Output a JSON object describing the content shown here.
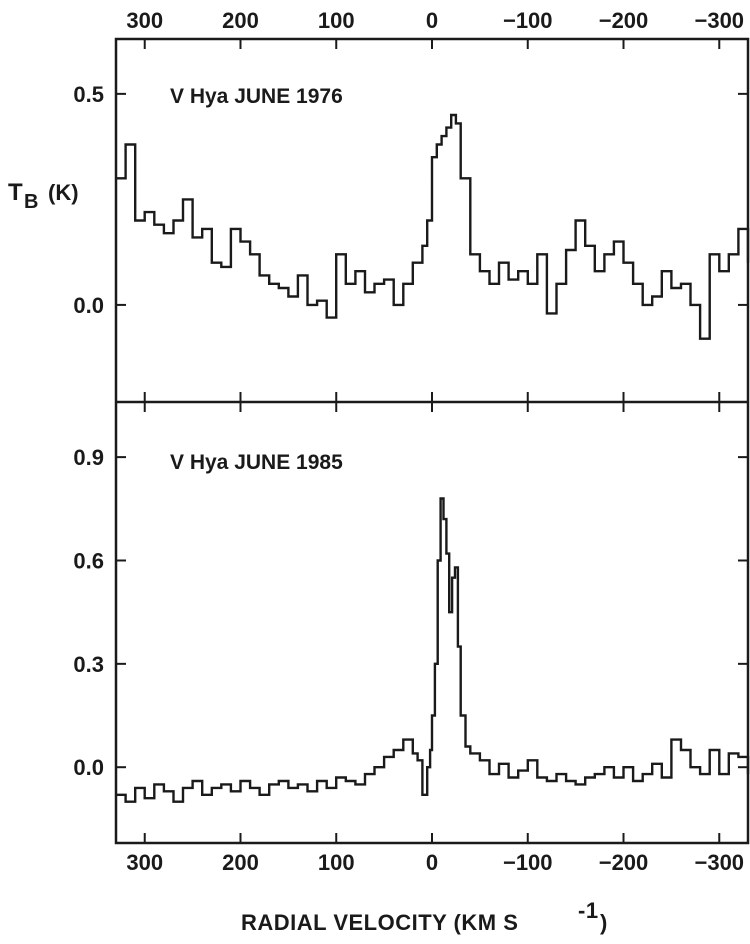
{
  "chart_data": {
    "type": "line",
    "xlabel": "RADIAL VELOCITY (KM S",
    "xlabel_exponent": "-1",
    "xlabel_close": ")",
    "x_ticks": [
      300,
      200,
      100,
      0,
      -100,
      -200,
      -300
    ],
    "x_tick_labels": [
      "300",
      "200",
      "100",
      "0",
      "−100",
      "−200",
      "−300"
    ],
    "xlim": [
      330,
      -330
    ],
    "x_axis_reversed": true,
    "ylabel_main": "T",
    "ylabel_sub": "B",
    "ylabel_unit": "(K)",
    "panels": [
      {
        "title": "V Hya JUNE 1976",
        "ylim": [
          -0.23,
          0.63
        ],
        "y_ticks": [
          0.5,
          0.0
        ],
        "y_tick_labels": [
          "0.5",
          "0.0"
        ],
        "x": [
          330,
          320,
          310,
          300,
          290,
          280,
          270,
          260,
          250,
          240,
          230,
          220,
          210,
          200,
          190,
          180,
          170,
          160,
          150,
          140,
          130,
          120,
          110,
          100,
          90,
          80,
          70,
          60,
          50,
          40,
          30,
          20,
          10,
          5,
          0,
          -5,
          -10,
          -15,
          -20,
          -25,
          -30,
          -40,
          -50,
          -60,
          -70,
          -80,
          -90,
          -100,
          -110,
          -120,
          -130,
          -140,
          -150,
          -160,
          -170,
          -180,
          -190,
          -200,
          -210,
          -220,
          -230,
          -240,
          -250,
          -260,
          -270,
          -280,
          -290,
          -300,
          -310,
          -320,
          -330
        ],
        "values": [
          0.3,
          0.38,
          0.2,
          0.22,
          0.19,
          0.17,
          0.2,
          0.25,
          0.16,
          0.18,
          0.1,
          0.09,
          0.18,
          0.15,
          0.12,
          0.07,
          0.05,
          0.04,
          0.02,
          0.07,
          0.0,
          0.01,
          -0.03,
          0.12,
          0.05,
          0.08,
          0.03,
          0.05,
          0.06,
          0.0,
          0.05,
          0.1,
          0.14,
          0.2,
          0.35,
          0.38,
          0.4,
          0.42,
          0.45,
          0.43,
          0.3,
          0.12,
          0.08,
          0.05,
          0.1,
          0.06,
          0.08,
          0.05,
          0.12,
          -0.02,
          0.05,
          0.13,
          0.2,
          0.14,
          0.08,
          0.12,
          0.15,
          0.1,
          0.05,
          0.0,
          0.02,
          0.08,
          0.04,
          0.05,
          0.0,
          -0.08,
          0.12,
          0.08,
          0.12,
          0.18,
          0.1
        ]
      },
      {
        "title": "V Hya JUNE 1985",
        "ylim": [
          -0.22,
          1.06
        ],
        "y_ticks": [
          0.9,
          0.6,
          0.3,
          0.0
        ],
        "y_tick_labels": [
          "0.9",
          "0.6",
          "0.3",
          "0.0"
        ],
        "x": [
          330,
          320,
          310,
          300,
          290,
          280,
          270,
          260,
          250,
          240,
          230,
          220,
          210,
          200,
          190,
          180,
          170,
          160,
          150,
          140,
          130,
          120,
          110,
          100,
          90,
          80,
          70,
          60,
          50,
          40,
          30,
          20,
          15,
          10,
          5,
          2,
          0,
          -3,
          -6,
          -9,
          -12,
          -15,
          -18,
          -21,
          -24,
          -27,
          -30,
          -35,
          -40,
          -50,
          -60,
          -70,
          -80,
          -90,
          -100,
          -110,
          -120,
          -130,
          -140,
          -150,
          -160,
          -170,
          -180,
          -190,
          -200,
          -210,
          -220,
          -230,
          -240,
          -250,
          -260,
          -270,
          -280,
          -290,
          -300,
          -310,
          -320,
          -330
        ],
        "values": [
          -0.08,
          -0.1,
          -0.06,
          -0.09,
          -0.05,
          -0.07,
          -0.1,
          -0.06,
          -0.04,
          -0.08,
          -0.06,
          -0.05,
          -0.07,
          -0.04,
          -0.06,
          -0.08,
          -0.05,
          -0.04,
          -0.06,
          -0.05,
          -0.07,
          -0.04,
          -0.06,
          -0.03,
          -0.04,
          -0.05,
          -0.02,
          0.0,
          0.03,
          0.05,
          0.08,
          0.04,
          0.02,
          -0.08,
          0.0,
          0.05,
          0.15,
          0.3,
          0.6,
          0.78,
          0.72,
          0.62,
          0.45,
          0.55,
          0.58,
          0.35,
          0.15,
          0.06,
          0.04,
          0.02,
          -0.02,
          0.01,
          -0.03,
          -0.01,
          0.02,
          -0.03,
          -0.04,
          -0.02,
          -0.04,
          -0.05,
          -0.03,
          -0.02,
          0.0,
          -0.03,
          0.0,
          -0.04,
          -0.02,
          0.01,
          -0.03,
          0.08,
          0.05,
          0.0,
          -0.02,
          0.05,
          -0.02,
          0.04,
          0.03,
          -0.02
        ]
      }
    ]
  }
}
